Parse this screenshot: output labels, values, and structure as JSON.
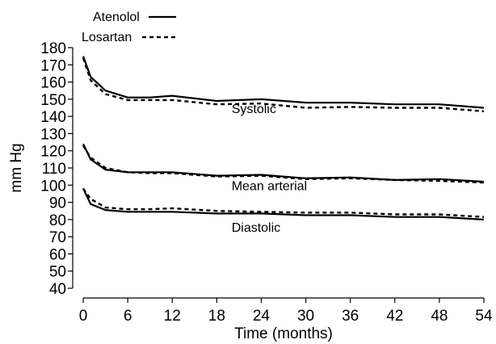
{
  "chart_data": {
    "type": "line",
    "title": "",
    "xlabel": "Time (months)",
    "ylabel": "mm Hg",
    "xlim": [
      0,
      54
    ],
    "ylim": [
      40,
      180
    ],
    "xticks": [
      0,
      6,
      12,
      18,
      24,
      30,
      36,
      42,
      48,
      54
    ],
    "yticks": [
      40,
      50,
      60,
      70,
      80,
      90,
      100,
      110,
      120,
      130,
      140,
      150,
      160,
      170,
      180
    ],
    "grid": false,
    "legend_position": "top-left",
    "x": [
      0,
      1,
      3,
      6,
      9,
      12,
      18,
      24,
      30,
      36,
      42,
      48,
      54
    ],
    "series": [
      {
        "name": "Atenolol",
        "group": "Systolic",
        "style": "solid",
        "values": [
          175,
          163,
          155,
          151,
          151,
          152,
          149,
          150,
          148,
          148,
          147,
          147,
          145
        ]
      },
      {
        "name": "Losartan",
        "group": "Systolic",
        "style": "dashed",
        "values": [
          174,
          161,
          153,
          149.5,
          149.5,
          149.5,
          147,
          147.5,
          145,
          145.5,
          145,
          145,
          143
        ]
      },
      {
        "name": "Atenolol",
        "group": "Mean arterial",
        "style": "solid",
        "values": [
          124,
          115,
          109,
          107.5,
          107.5,
          107.5,
          105.5,
          106,
          104,
          104.5,
          103,
          103.5,
          102
        ]
      },
      {
        "name": "Losartan",
        "group": "Mean arterial",
        "style": "dashed",
        "values": [
          123,
          116,
          110,
          107.5,
          107,
          107,
          105,
          105.5,
          103.5,
          104,
          103,
          102.5,
          101.5
        ]
      },
      {
        "name": "Atenolol",
        "group": "Diastolic",
        "style": "solid",
        "values": [
          98,
          89,
          85.5,
          84.5,
          84.5,
          84.5,
          83.5,
          83.5,
          82.5,
          82.5,
          81.5,
          81.5,
          80
        ]
      },
      {
        "name": "Losartan",
        "group": "Diastolic",
        "style": "dashed",
        "values": [
          98,
          92,
          87,
          86,
          86,
          86.5,
          85,
          84.5,
          84,
          84,
          83,
          83,
          81.5
        ]
      }
    ],
    "annotations": [
      {
        "text": "Systolic",
        "x": 20,
        "y": 142
      },
      {
        "text": "Mean arterial",
        "x": 20,
        "y": 97
      },
      {
        "text": "Diastolic",
        "x": 20,
        "y": 73
      }
    ],
    "legend": [
      {
        "label": "Atenolol",
        "style": "solid"
      },
      {
        "label": "Losartan",
        "style": "dashed"
      }
    ],
    "colors": {
      "line": "#000000",
      "axis": "#000000",
      "background": "#ffffff"
    }
  }
}
